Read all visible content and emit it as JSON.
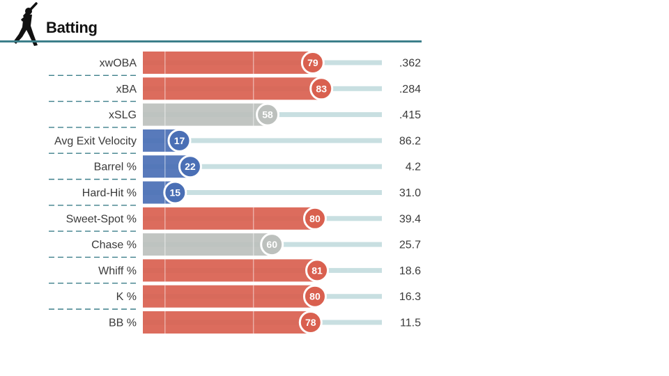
{
  "header": {
    "title": "Batting",
    "icon": "baseball-batter-icon"
  },
  "colors": {
    "high": "#d9604f",
    "mid": "#bcc0bd",
    "low": "#4a6fb5",
    "track": "#c8dfe1",
    "rule": "#3c7f8a"
  },
  "chart_data": {
    "type": "bar",
    "title": "Batting",
    "xlim": [
      0,
      100
    ],
    "grid": true,
    "categories": [
      "xwOBA",
      "xBA",
      "xSLG",
      "Avg Exit Velocity",
      "Barrel %",
      "Hard-Hit %",
      "Sweet-Spot %",
      "Chase %",
      "Whiff %",
      "K %",
      "BB %"
    ],
    "series": [
      {
        "values": [
          79,
          83,
          58,
          17,
          22,
          15,
          80,
          60,
          81,
          80,
          78
        ]
      }
    ],
    "stat_values": [
      ".362",
      ".284",
      ".415",
      "86.2",
      "4.2",
      "31.0",
      "39.4",
      "25.7",
      "18.6",
      "16.3",
      "11.5"
    ]
  }
}
